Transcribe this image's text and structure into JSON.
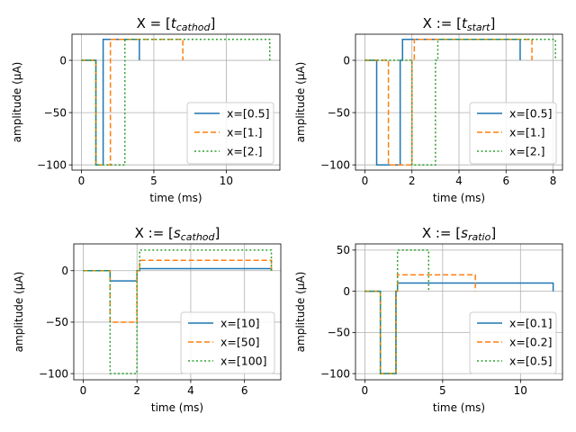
{
  "chart_data": [
    {
      "type": "line",
      "title": "X = [t_cathod]",
      "title_parts": [
        {
          "text": "X = ["
        },
        {
          "text": "t",
          "italic": true
        },
        {
          "text": "cathod",
          "italic": true,
          "sub": true
        },
        {
          "text": "]"
        }
      ],
      "xlabel": "time (ms)",
      "ylabel": "amplitude (μA)",
      "xlim": [
        -0.65,
        13.7
      ],
      "ylim": [
        -105,
        25
      ],
      "xticks": [
        0,
        5,
        10
      ],
      "yticks": [
        0,
        -50,
        -100
      ],
      "grid": true,
      "legend": "lower right",
      "series": [
        {
          "name": "x=[0.5]",
          "color": "#1f77b4",
          "dash": "solid",
          "x": [
            0,
            1,
            1,
            1.5,
            1.5,
            1.5,
            1.5,
            2,
            2,
            4,
            4
          ],
          "y": [
            0,
            0,
            -100,
            -100,
            0,
            0,
            20,
            20,
            20,
            20,
            0
          ]
        },
        {
          "name": "x=[1.]",
          "color": "#ff7f0e",
          "dash": "dashed",
          "x": [
            0,
            1,
            1,
            2,
            2,
            2,
            2,
            7,
            7
          ],
          "y": [
            0,
            0,
            -100,
            -100,
            0,
            0,
            20,
            20,
            0
          ]
        },
        {
          "name": "x=[2.]",
          "color": "#2ca02c",
          "dash": "dotted",
          "x": [
            0,
            1,
            1,
            3,
            3,
            3,
            3,
            13,
            13
          ],
          "y": [
            0,
            0,
            -100,
            -100,
            0,
            0,
            20,
            20,
            0
          ]
        }
      ]
    },
    {
      "type": "line",
      "title": "X := [t_start]",
      "title_parts": [
        {
          "text": "X := ["
        },
        {
          "text": "t",
          "italic": true
        },
        {
          "text": "start",
          "italic": true,
          "sub": true
        },
        {
          "text": "]"
        }
      ],
      "xlabel": "time (ms)",
      "ylabel": "amplitude (μA)",
      "xlim": [
        -0.4,
        8.4
      ],
      "ylim": [
        -105,
        25
      ],
      "xticks": [
        0,
        2,
        4,
        6,
        8
      ],
      "yticks": [
        0,
        -50,
        -100
      ],
      "grid": true,
      "legend": "lower right",
      "series": [
        {
          "name": "x=[0.5]",
          "color": "#1f77b4",
          "dash": "solid",
          "x": [
            0,
            0.5,
            0.5,
            1.5,
            1.5,
            1.6,
            1.6,
            6.6,
            6.6
          ],
          "y": [
            0,
            0,
            -100,
            -100,
            0,
            0,
            20,
            20,
            0
          ]
        },
        {
          "name": "x=[1.]",
          "color": "#ff7f0e",
          "dash": "dashed",
          "x": [
            0,
            1,
            1,
            2,
            2,
            2.1,
            2.1,
            7.1,
            7.1
          ],
          "y": [
            0,
            0,
            -100,
            -100,
            0,
            0,
            20,
            20,
            0
          ]
        },
        {
          "name": "x=[2.]",
          "color": "#2ca02c",
          "dash": "dotted",
          "x": [
            0,
            2,
            2,
            3,
            3,
            3.1,
            3.1,
            8.1,
            8.1
          ],
          "y": [
            0,
            0,
            -100,
            -100,
            0,
            0,
            20,
            20,
            0
          ]
        }
      ]
    },
    {
      "type": "line",
      "title": "X := [s_cathod]",
      "title_parts": [
        {
          "text": "X := ["
        },
        {
          "text": "s",
          "italic": true
        },
        {
          "text": "cathod",
          "italic": true,
          "sub": true
        },
        {
          "text": "]"
        }
      ],
      "xlabel": "time (ms)",
      "ylabel": "amplitude (μA)",
      "xlim": [
        -0.35,
        7.35
      ],
      "ylim": [
        -106,
        26
      ],
      "xticks": [
        0,
        2,
        4,
        6
      ],
      "yticks": [
        0,
        -50,
        -100
      ],
      "grid": true,
      "legend": "lower right",
      "series": [
        {
          "name": "x=[10]",
          "color": "#1f77b4",
          "dash": "solid",
          "x": [
            0,
            1,
            1,
            2,
            2,
            2.1,
            2.1,
            7,
            7
          ],
          "y": [
            0,
            0,
            -10,
            -10,
            0,
            0,
            2,
            2,
            0
          ]
        },
        {
          "name": "x=[50]",
          "color": "#ff7f0e",
          "dash": "dashed",
          "x": [
            0,
            1,
            1,
            2,
            2,
            2.1,
            2.1,
            7,
            7
          ],
          "y": [
            0,
            0,
            -50,
            -50,
            0,
            0,
            10,
            10,
            0
          ]
        },
        {
          "name": "x=[100]",
          "color": "#2ca02c",
          "dash": "dotted",
          "x": [
            0,
            1,
            1,
            2,
            2,
            2.1,
            2.1,
            7,
            7
          ],
          "y": [
            0,
            0,
            -100,
            -100,
            0,
            0,
            20,
            20,
            0
          ]
        }
      ]
    },
    {
      "type": "line",
      "title": "X := [s_ratio]",
      "title_parts": [
        {
          "text": "X := ["
        },
        {
          "text": "s",
          "italic": true
        },
        {
          "text": "ratio",
          "italic": true,
          "sub": true
        },
        {
          "text": "]"
        }
      ],
      "xlabel": "time (ms)",
      "ylabel": "amplitude (μA)",
      "xlim": [
        -0.6,
        12.7
      ],
      "ylim": [
        -107.5,
        57.5
      ],
      "xticks": [
        0,
        5,
        10
      ],
      "yticks": [
        50,
        0,
        -50,
        -100
      ],
      "grid": true,
      "legend": "lower right",
      "series": [
        {
          "name": "x=[0.1]",
          "color": "#1f77b4",
          "dash": "solid",
          "x": [
            0,
            1,
            1,
            2,
            2,
            2.1,
            2.1,
            12.1,
            12.1
          ],
          "y": [
            0,
            0,
            -100,
            -100,
            0,
            0,
            10,
            10,
            0
          ]
        },
        {
          "name": "x=[0.2]",
          "color": "#ff7f0e",
          "dash": "dashed",
          "x": [
            0,
            1,
            1,
            2,
            2,
            2.1,
            2.1,
            7.1,
            7.1
          ],
          "y": [
            0,
            0,
            -100,
            -100,
            0,
            0,
            20,
            20,
            0
          ]
        },
        {
          "name": "x=[0.5]",
          "color": "#2ca02c",
          "dash": "dotted",
          "x": [
            0,
            1,
            1,
            2,
            2,
            2.1,
            2.1,
            4.1,
            4.1
          ],
          "y": [
            0,
            0,
            -100,
            -100,
            0,
            0,
            50,
            50,
            0
          ]
        }
      ]
    }
  ]
}
